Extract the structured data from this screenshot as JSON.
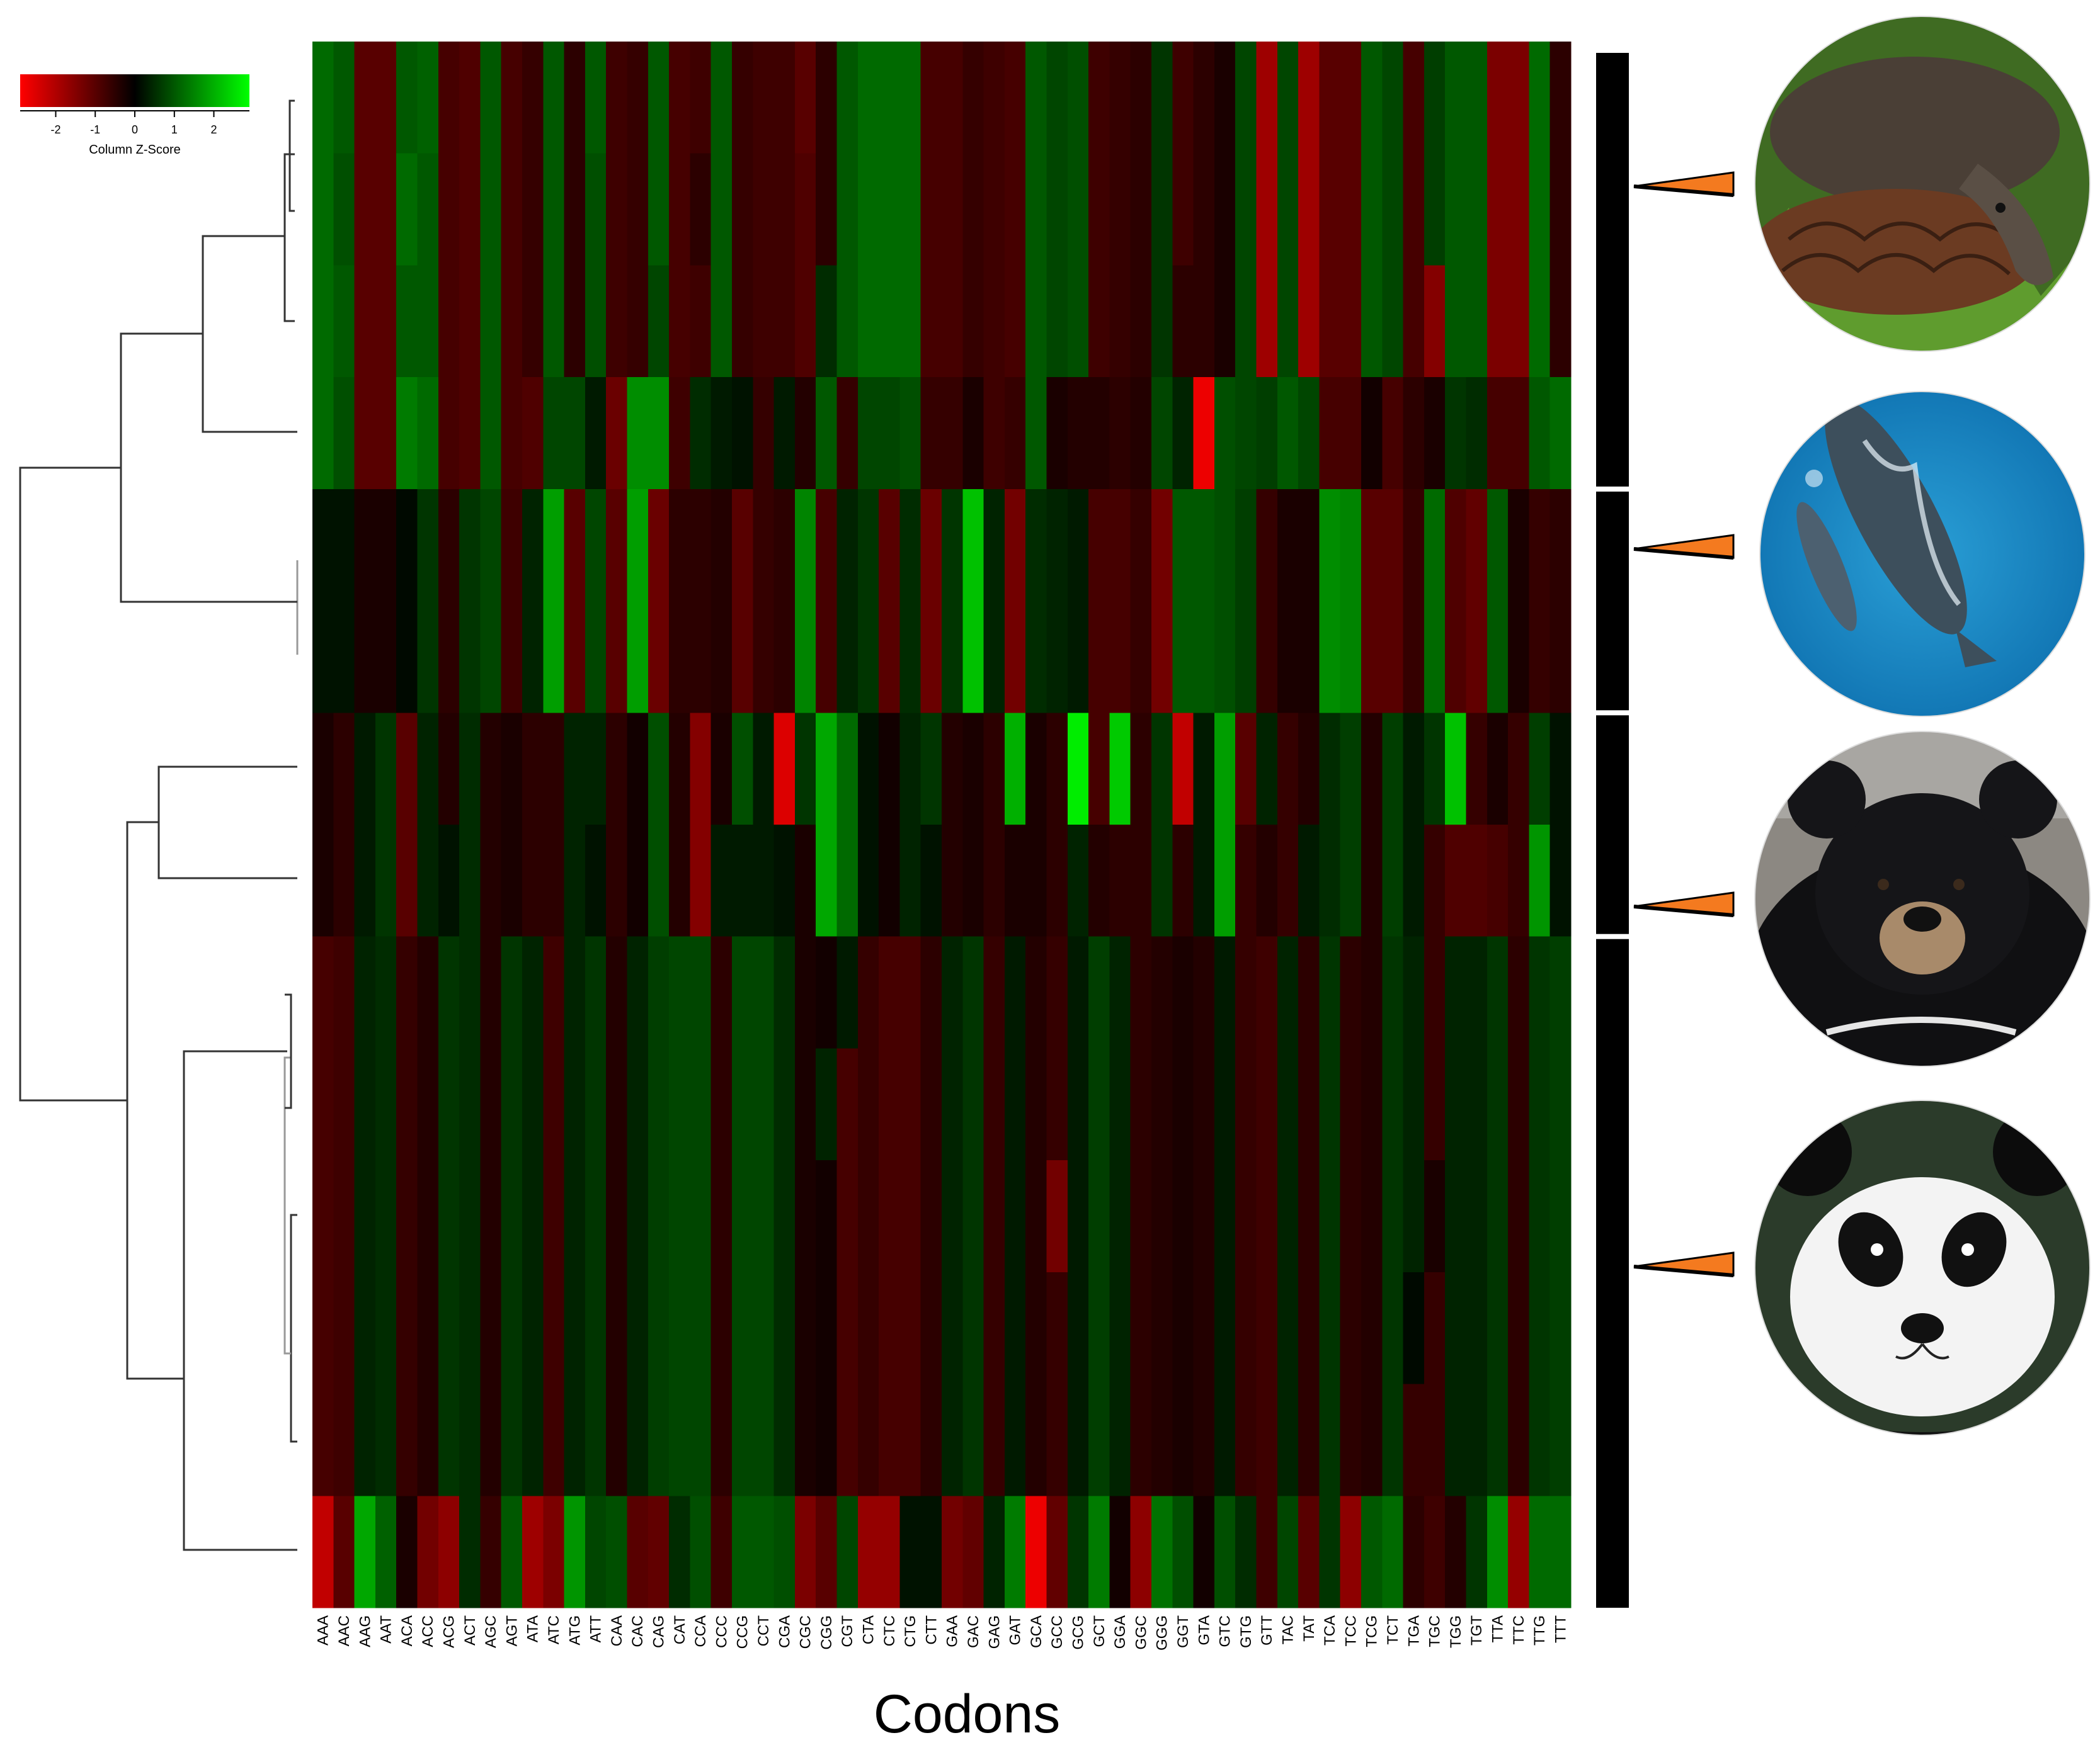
{
  "chart_data": {
    "type": "heatmap",
    "xlabel": "Codons",
    "ylabel": "",
    "title": "",
    "columns": [
      "AAA",
      "AAC",
      "AAG",
      "AAT",
      "ACA",
      "ACC",
      "ACG",
      "ACT",
      "AGC",
      "AGT",
      "ATA",
      "ATC",
      "ATG",
      "ATT",
      "CAA",
      "CAC",
      "CAG",
      "CAT",
      "CCA",
      "CCC",
      "CCG",
      "CCT",
      "CGA",
      "CGC",
      "CGG",
      "CGT",
      "CTA",
      "CTC",
      "CTG",
      "CTT",
      "GAA",
      "GAC",
      "GAG",
      "GAT",
      "GCA",
      "GCC",
      "GCG",
      "GCT",
      "GGA",
      "GGC",
      "GGG",
      "GGT",
      "GTA",
      "GTC",
      "GTG",
      "GTT",
      "TAC",
      "TAT",
      "TCA",
      "TCC",
      "TCG",
      "TCT",
      "TGA",
      "TGC",
      "TGG",
      "TGT",
      "TTA",
      "TTC",
      "TTG",
      "TTT"
    ],
    "color_key": {
      "title": "Column Z-Score",
      "ticks": [
        "-2",
        "-1",
        "0",
        "1",
        "2"
      ],
      "range": [
        -2.9,
        2.9
      ],
      "low_color": "#ff0000",
      "mid_color": "#000000",
      "high_color": "#00ff00"
    },
    "row_groups": [
      {
        "icon": "pangolin-photo",
        "rows": 4
      },
      {
        "icon": "whale-photo",
        "rows": 2
      },
      {
        "icon": "bear-photo",
        "rows": 2
      },
      {
        "icon": "panda-photo",
        "rows": 6
      }
    ],
    "rows": [
      [
        1.2,
        1.0,
        -1.0,
        -1.0,
        1.0,
        1.1,
        -0.8,
        -0.9,
        1.0,
        -0.8,
        -0.6,
        1.0,
        -0.5,
        1.0,
        -0.7,
        -0.6,
        1.0,
        -0.8,
        -0.7,
        1.0,
        -0.6,
        -0.7,
        -0.7,
        -1.0,
        -0.5,
        1.0,
        1.2,
        1.2,
        1.2,
        -0.8,
        -0.8,
        -0.6,
        -0.7,
        -0.8,
        1.0,
        0.8,
        0.9,
        -0.7,
        -0.6,
        -0.5,
        0.6,
        -0.7,
        -0.5,
        -0.3,
        0.8,
        -1.8,
        0.8,
        -1.8,
        -1.0,
        -1.0,
        1.0,
        0.8,
        -0.8,
        0.7,
        1.0,
        1.0,
        -1.4,
        -1.4,
        1.2,
        -0.5
      ],
      [
        1.2,
        0.9,
        -1.0,
        -1.0,
        1.2,
        1.0,
        -0.8,
        -0.9,
        1.0,
        -0.8,
        -0.6,
        1.0,
        -0.5,
        0.9,
        -0.7,
        -0.6,
        1.0,
        -0.8,
        -0.5,
        1.0,
        -0.6,
        -0.7,
        -0.7,
        -0.9,
        -0.5,
        1.0,
        1.2,
        1.2,
        1.2,
        -0.8,
        -0.8,
        -0.6,
        -0.7,
        -0.8,
        1.0,
        0.8,
        0.9,
        -0.7,
        -0.6,
        -0.5,
        0.6,
        -0.7,
        -0.5,
        -0.3,
        0.8,
        -1.8,
        0.8,
        -1.8,
        -1.0,
        -1.0,
        1.0,
        0.8,
        -0.8,
        0.7,
        1.0,
        1.0,
        -1.4,
        -1.4,
        1.2,
        -0.5
      ],
      [
        1.2,
        1.0,
        -1.0,
        -1.0,
        1.0,
        1.0,
        -0.8,
        -0.9,
        1.0,
        -0.8,
        -0.6,
        1.0,
        -0.5,
        0.9,
        -0.7,
        -0.6,
        0.8,
        -0.8,
        -0.7,
        1.0,
        -0.6,
        -0.7,
        -0.7,
        -0.9,
        0.5,
        1.0,
        1.2,
        1.2,
        1.2,
        -0.8,
        -0.8,
        -0.6,
        -0.7,
        -0.8,
        1.0,
        0.8,
        0.9,
        -0.7,
        -0.6,
        -0.5,
        0.6,
        -0.5,
        -0.5,
        -0.3,
        0.8,
        -1.8,
        0.8,
        -1.8,
        -1.0,
        -1.0,
        1.0,
        0.8,
        -0.8,
        -1.5,
        1.0,
        1.0,
        -1.4,
        -1.4,
        1.2,
        -0.5
      ],
      [
        1.2,
        0.9,
        -1.0,
        -1.0,
        1.4,
        1.2,
        -0.8,
        -0.9,
        1.0,
        -0.8,
        -0.9,
        0.8,
        0.8,
        0.3,
        -1.2,
        1.6,
        1.6,
        -0.7,
        0.5,
        0.3,
        0.2,
        -0.6,
        0.3,
        -0.4,
        1.0,
        -0.6,
        0.8,
        0.8,
        0.9,
        -0.6,
        -0.6,
        -0.3,
        -0.7,
        -0.6,
        1.0,
        -0.3,
        -0.4,
        -0.4,
        -0.5,
        -0.4,
        0.8,
        0.4,
        -2.7,
        0.9,
        0.8,
        0.7,
        1.0,
        0.8,
        -0.8,
        -0.8,
        -0.2,
        -0.8,
        -0.5,
        -0.3,
        0.6,
        0.5,
        -0.8,
        -0.8,
        1.0,
        1.2
      ],
      [
        0.2,
        0.2,
        -0.3,
        -0.3,
        0.1,
        0.6,
        -0.5,
        0.6,
        0.8,
        -0.7,
        0.4,
        1.8,
        -1.0,
        0.8,
        -1.0,
        1.8,
        -1.2,
        -0.5,
        -0.5,
        -0.4,
        -1.0,
        -0.6,
        -0.5,
        1.5,
        -0.8,
        0.4,
        0.6,
        -1.0,
        0.5,
        -1.2,
        0.6,
        2.2,
        0.4,
        -1.3,
        0.5,
        0.4,
        0.3,
        -0.8,
        -0.8,
        -0.6,
        -1.3,
        1.0,
        1.0,
        0.9,
        0.7,
        -0.6,
        -0.3,
        -0.3,
        1.6,
        1.5,
        -1.0,
        -1.0,
        -0.6,
        1.2,
        -0.9,
        -1.1,
        1.0,
        -0.3,
        -0.6,
        -0.5
      ],
      [
        0.2,
        0.2,
        -0.3,
        -0.3,
        0.1,
        0.6,
        -0.5,
        0.6,
        0.8,
        -0.7,
        0.4,
        1.8,
        -1.0,
        0.8,
        -1.0,
        1.8,
        -1.2,
        -0.5,
        -0.5,
        -0.4,
        -1.0,
        -0.6,
        -0.5,
        1.5,
        -0.8,
        0.4,
        0.6,
        -1.0,
        0.5,
        -1.2,
        0.6,
        2.2,
        0.4,
        -1.3,
        0.5,
        0.4,
        0.3,
        -0.8,
        -0.8,
        -0.6,
        -1.3,
        1.0,
        1.0,
        0.9,
        0.7,
        -0.6,
        -0.3,
        -0.3,
        1.6,
        1.5,
        -1.0,
        -1.0,
        -0.6,
        1.2,
        -0.9,
        -1.1,
        1.0,
        -0.3,
        -0.6,
        -0.5
      ],
      [
        -0.3,
        -0.5,
        0.3,
        0.6,
        -1.0,
        0.4,
        -0.4,
        0.5,
        -0.4,
        -0.3,
        -0.5,
        -0.5,
        0.4,
        0.4,
        -0.5,
        -0.2,
        0.9,
        -0.4,
        -1.5,
        -0.3,
        0.9,
        0.3,
        -2.5,
        0.6,
        1.9,
        1.2,
        0.2,
        -0.2,
        0.4,
        0.6,
        -0.4,
        -0.3,
        -0.5,
        2.0,
        -0.3,
        -0.5,
        2.7,
        -0.8,
        2.3,
        -0.5,
        0.6,
        -2.2,
        0.3,
        1.8,
        -1.0,
        0.4,
        -0.6,
        -0.4,
        0.5,
        0.7,
        -0.4,
        0.7,
        0.3,
        0.6,
        2.2,
        -0.6,
        -0.3,
        -0.6,
        0.7,
        0.2
      ],
      [
        -0.3,
        -0.5,
        0.3,
        0.6,
        -1.0,
        0.4,
        0.2,
        0.5,
        -0.4,
        -0.3,
        -0.5,
        -0.5,
        0.4,
        0.2,
        -0.5,
        -0.2,
        0.9,
        -0.4,
        -1.5,
        0.3,
        0.3,
        0.3,
        0.2,
        -0.3,
        1.9,
        1.2,
        0.2,
        -0.2,
        0.4,
        0.2,
        -0.4,
        -0.3,
        -0.5,
        -0.3,
        -0.3,
        -0.5,
        0.4,
        -0.4,
        -0.5,
        -0.5,
        0.6,
        -0.5,
        0.3,
        1.8,
        -0.6,
        -0.4,
        -0.6,
        0.3,
        0.5,
        0.7,
        -0.4,
        0.7,
        0.3,
        -0.6,
        -0.9,
        -0.9,
        -0.8,
        -0.6,
        1.7,
        0.2
      ],
      [
        -0.8,
        -0.7,
        0.4,
        0.5,
        -0.6,
        -0.4,
        0.6,
        0.5,
        -0.4,
        0.6,
        0.4,
        -0.7,
        0.4,
        0.6,
        -0.4,
        0.4,
        0.7,
        0.8,
        0.8,
        -0.5,
        0.8,
        0.8,
        0.5,
        -0.3,
        -0.2,
        0.3,
        -0.6,
        -0.8,
        -0.8,
        -0.5,
        0.4,
        0.6,
        -0.6,
        0.3,
        -0.4,
        -0.6,
        0.3,
        0.7,
        0.4,
        -0.5,
        -0.4,
        -0.3,
        -0.4,
        0.3,
        -0.6,
        -0.7,
        0.4,
        -0.5,
        0.6,
        -0.5,
        -0.4,
        0.6,
        0.4,
        -0.6,
        0.4,
        0.4,
        0.6,
        -0.5,
        0.6,
        0.7
      ],
      [
        -0.8,
        -0.7,
        0.4,
        0.5,
        -0.6,
        -0.4,
        0.6,
        0.5,
        -0.4,
        0.6,
        0.4,
        -0.7,
        0.4,
        0.6,
        -0.4,
        0.4,
        0.7,
        0.8,
        0.8,
        -0.5,
        0.8,
        0.8,
        0.5,
        -0.3,
        0.4,
        -0.8,
        -0.6,
        -0.8,
        -0.8,
        -0.5,
        0.4,
        0.6,
        -0.6,
        0.3,
        -0.4,
        -0.6,
        0.3,
        0.7,
        0.4,
        -0.5,
        -0.4,
        -0.3,
        -0.4,
        0.3,
        -0.6,
        -0.7,
        0.4,
        -0.5,
        0.6,
        -0.5,
        -0.4,
        0.6,
        0.4,
        -0.6,
        0.4,
        0.4,
        0.6,
        -0.5,
        0.6,
        0.7
      ],
      [
        -0.8,
        -0.7,
        0.4,
        0.5,
        -0.6,
        -0.4,
        0.6,
        0.5,
        -0.4,
        0.6,
        0.4,
        -0.7,
        0.4,
        0.6,
        -0.4,
        0.4,
        0.7,
        0.8,
        0.8,
        -0.5,
        0.8,
        0.8,
        0.5,
        -0.3,
        -0.2,
        -0.8,
        -0.6,
        -0.8,
        -0.8,
        -0.5,
        0.4,
        0.6,
        -0.6,
        0.3,
        -0.4,
        -1.3,
        0.3,
        0.7,
        0.4,
        -0.5,
        -0.4,
        -0.3,
        -0.4,
        0.3,
        -0.6,
        -0.7,
        0.4,
        -0.5,
        0.6,
        -0.5,
        -0.4,
        0.6,
        0.4,
        -0.3,
        0.4,
        0.4,
        0.6,
        -0.5,
        0.6,
        0.7
      ],
      [
        -0.8,
        -0.7,
        0.4,
        0.5,
        -0.6,
        -0.4,
        0.6,
        0.5,
        -0.4,
        0.6,
        0.4,
        -0.7,
        0.4,
        0.6,
        -0.4,
        0.4,
        0.7,
        0.8,
        0.8,
        -0.5,
        0.8,
        0.8,
        0.5,
        -0.3,
        -0.2,
        -0.8,
        -0.6,
        -0.8,
        -0.8,
        -0.5,
        0.4,
        0.6,
        -0.6,
        0.3,
        -0.4,
        -0.6,
        0.3,
        0.7,
        0.4,
        -0.5,
        -0.4,
        -0.3,
        -0.4,
        0.3,
        -0.6,
        -0.7,
        0.4,
        -0.5,
        0.6,
        -0.5,
        -0.4,
        0.6,
        0.1,
        -0.6,
        0.4,
        0.4,
        0.6,
        -0.5,
        0.6,
        0.7
      ],
      [
        -0.8,
        -0.7,
        0.4,
        0.5,
        -0.6,
        -0.4,
        0.6,
        0.5,
        -0.4,
        0.6,
        0.4,
        -0.7,
        0.4,
        0.6,
        -0.4,
        0.4,
        0.7,
        0.8,
        0.8,
        -0.5,
        0.8,
        0.8,
        0.5,
        -0.3,
        -0.2,
        -0.8,
        -0.6,
        -0.8,
        -0.8,
        -0.5,
        0.4,
        0.6,
        -0.6,
        0.3,
        -0.4,
        -0.6,
        0.3,
        0.7,
        0.4,
        -0.5,
        -0.4,
        -0.3,
        -0.4,
        0.3,
        -0.6,
        -0.7,
        0.4,
        -0.5,
        0.6,
        -0.5,
        -0.4,
        0.6,
        -0.6,
        -0.6,
        0.4,
        0.4,
        0.6,
        -0.5,
        0.6,
        0.7
      ],
      [
        -2.2,
        -1.0,
        1.9,
        1.1,
        -0.3,
        -1.3,
        -1.6,
        0.5,
        -0.6,
        1.0,
        -1.8,
        -1.4,
        1.7,
        0.8,
        0.9,
        -1.0,
        -1.1,
        0.5,
        0.9,
        -0.7,
        1.0,
        1.0,
        0.9,
        -1.4,
        -1.0,
        0.8,
        -1.7,
        -1.7,
        0.2,
        0.2,
        -1.3,
        -1.1,
        0.4,
        1.4,
        -2.7,
        -1.1,
        0.6,
        1.4,
        -0.2,
        -1.6,
        1.3,
        0.9,
        -0.2,
        0.9,
        0.5,
        -0.7,
        0.8,
        -1.0,
        0.6,
        -1.6,
        1.0,
        1.2,
        -0.5,
        -0.7,
        -0.4,
        0.6,
        1.6,
        -1.7,
        1.2,
        1.2
      ]
    ]
  }
}
